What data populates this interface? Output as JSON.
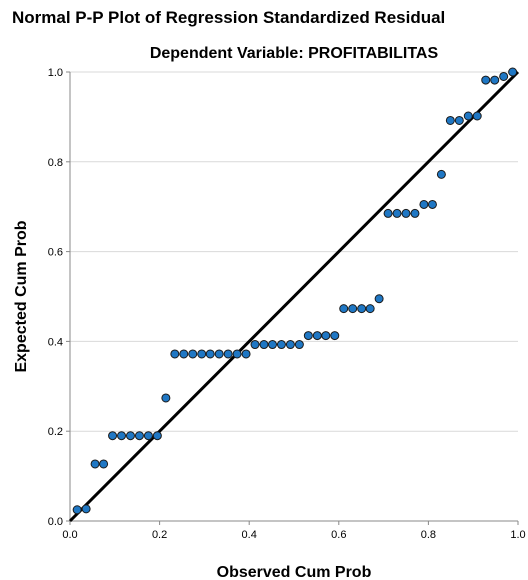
{
  "chart_data": {
    "type": "scatter",
    "title": "Normal P-P Plot of Regression Standardized Residual",
    "subtitle": "Dependent Variable: PROFITABILITAS",
    "xlabel": "Observed Cum Prob",
    "ylabel": "Expected Cum Prob",
    "xlim": [
      0,
      1
    ],
    "ylim": [
      0,
      1
    ],
    "x_ticks": [
      "0.0",
      "0.2",
      "0.4",
      "0.6",
      "0.8",
      "1.0"
    ],
    "y_ticks": [
      "0.0",
      "0.2",
      "0.4",
      "0.6",
      "0.8",
      "1.0"
    ],
    "grid": "horizontal",
    "reference_line": [
      [
        0,
        0
      ],
      [
        1,
        1
      ]
    ],
    "marker_color": "#1f77c4",
    "line_color": "#000000",
    "points": [
      [
        0.016,
        0.025
      ],
      [
        0.036,
        0.027
      ],
      [
        0.056,
        0.127
      ],
      [
        0.075,
        0.127
      ],
      [
        0.095,
        0.19
      ],
      [
        0.115,
        0.19
      ],
      [
        0.135,
        0.19
      ],
      [
        0.155,
        0.19
      ],
      [
        0.175,
        0.19
      ],
      [
        0.195,
        0.19
      ],
      [
        0.214,
        0.274
      ],
      [
        0.234,
        0.372
      ],
      [
        0.254,
        0.372
      ],
      [
        0.274,
        0.372
      ],
      [
        0.294,
        0.372
      ],
      [
        0.313,
        0.372
      ],
      [
        0.333,
        0.372
      ],
      [
        0.353,
        0.372
      ],
      [
        0.373,
        0.372
      ],
      [
        0.393,
        0.372
      ],
      [
        0.413,
        0.393
      ],
      [
        0.433,
        0.393
      ],
      [
        0.452,
        0.393
      ],
      [
        0.472,
        0.393
      ],
      [
        0.492,
        0.393
      ],
      [
        0.512,
        0.393
      ],
      [
        0.532,
        0.413
      ],
      [
        0.552,
        0.413
      ],
      [
        0.571,
        0.413
      ],
      [
        0.591,
        0.413
      ],
      [
        0.611,
        0.473
      ],
      [
        0.631,
        0.473
      ],
      [
        0.651,
        0.473
      ],
      [
        0.67,
        0.473
      ],
      [
        0.69,
        0.495
      ],
      [
        0.71,
        0.685
      ],
      [
        0.73,
        0.685
      ],
      [
        0.75,
        0.685
      ],
      [
        0.77,
        0.685
      ],
      [
        0.79,
        0.705
      ],
      [
        0.809,
        0.705
      ],
      [
        0.829,
        0.772
      ],
      [
        0.849,
        0.892
      ],
      [
        0.869,
        0.892
      ],
      [
        0.889,
        0.902
      ],
      [
        0.909,
        0.902
      ],
      [
        0.928,
        0.982
      ],
      [
        0.948,
        0.982
      ],
      [
        0.968,
        0.99
      ],
      [
        0.988,
        1.0
      ]
    ]
  }
}
